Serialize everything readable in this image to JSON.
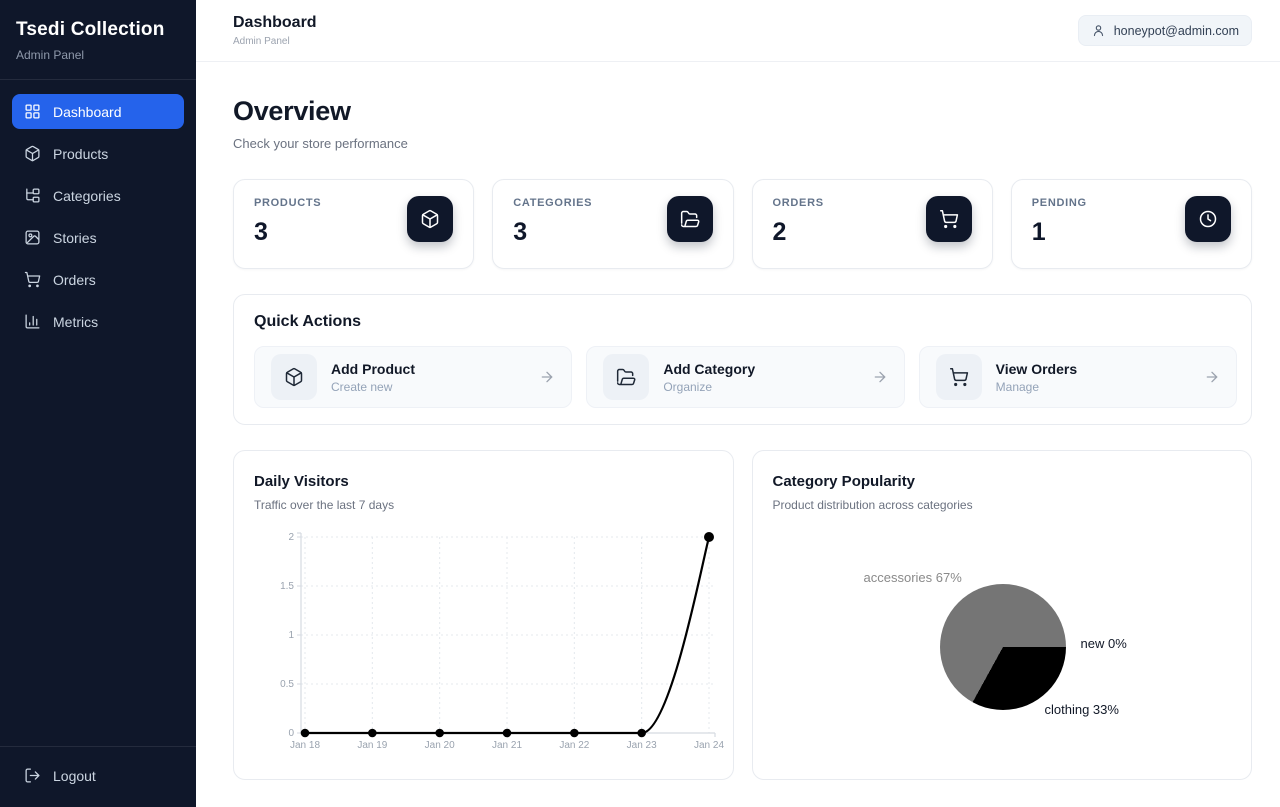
{
  "colors": {
    "sidebar_bg": "#0f172a",
    "accent_blue": "#2563eb",
    "card_border": "#e8ebf0",
    "line_color": "#000000",
    "pie_gray": "#757575",
    "pie_black": "#000000"
  },
  "sidebar": {
    "brand": "Tsedi Collection",
    "brand_sub": "Admin Panel",
    "items": [
      {
        "label": "Dashboard",
        "active": true
      },
      {
        "label": "Products",
        "active": false
      },
      {
        "label": "Categories",
        "active": false
      },
      {
        "label": "Stories",
        "active": false
      },
      {
        "label": "Orders",
        "active": false
      },
      {
        "label": "Metrics",
        "active": false
      }
    ],
    "logout_label": "Logout"
  },
  "header": {
    "title": "Dashboard",
    "subtitle": "Admin Panel",
    "user_email": "honeypot@admin.com"
  },
  "overview": {
    "title": "Overview",
    "subtitle": "Check your store performance"
  },
  "stats": [
    {
      "label": "PRODUCTS",
      "value": "3",
      "icon": "package-icon"
    },
    {
      "label": "CATEGORIES",
      "value": "3",
      "icon": "folder-open-icon"
    },
    {
      "label": "ORDERS",
      "value": "2",
      "icon": "cart-icon"
    },
    {
      "label": "PENDING",
      "value": "1",
      "icon": "clock-icon"
    }
  ],
  "quick_actions": {
    "title": "Quick Actions",
    "actions": [
      {
        "title": "Add Product",
        "subtitle": "Create new",
        "icon": "package-icon"
      },
      {
        "title": "Add Category",
        "subtitle": "Organize",
        "icon": "folder-open-icon"
      },
      {
        "title": "View Orders",
        "subtitle": "Manage",
        "icon": "cart-icon"
      }
    ]
  },
  "chart_data": [
    {
      "type": "line",
      "title": "Daily Visitors",
      "subtitle": "Traffic over the last 7 days",
      "x": [
        "Jan 18",
        "Jan 19",
        "Jan 20",
        "Jan 21",
        "Jan 22",
        "Jan 23",
        "Jan 24"
      ],
      "values": [
        0,
        0,
        0,
        0,
        0,
        0,
        2
      ],
      "ylim": [
        0,
        2
      ],
      "yticks": [
        0,
        0.5,
        1,
        1.5,
        2
      ],
      "xlabel": "",
      "ylabel": "",
      "grid": true,
      "legend": false,
      "line_color": "#000000",
      "point_color": "#000000"
    },
    {
      "type": "pie",
      "title": "Category Popularity",
      "subtitle": "Product distribution across categories",
      "start_angle": "east",
      "direction": "clockwise",
      "slices": [
        {
          "label": "clothing",
          "pct": 33,
          "color": "#000000",
          "display": "clothing 33%"
        },
        {
          "label": "accessories",
          "pct": 67,
          "color": "#757575",
          "display": "accessories 67%"
        },
        {
          "label": "new",
          "pct": 0,
          "color": "#bdbdbd",
          "display": "new 0%"
        }
      ]
    }
  ]
}
